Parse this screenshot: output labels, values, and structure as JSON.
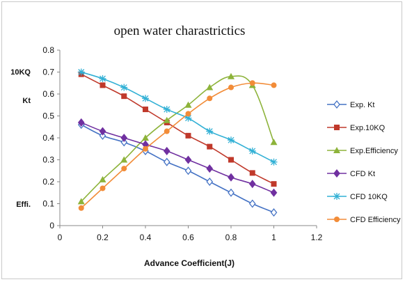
{
  "chart_data": {
    "type": "line",
    "title": "open water charastrictics",
    "xlabel": "Advance Coefficient(J)",
    "ylabel": "",
    "side_labels": [
      "10KQ",
      "Kt",
      "Effi."
    ],
    "xlim": [
      0,
      1.2
    ],
    "ylim": [
      0,
      0.8
    ],
    "x_ticks": [
      "0",
      "0.2",
      "0.4",
      "0.6",
      "0.8",
      "1",
      "1.2"
    ],
    "y_ticks": [
      "0",
      "0.1",
      "0.2",
      "0.3",
      "0.4",
      "0.5",
      "0.6",
      "0.7",
      "0.8"
    ],
    "grid": false,
    "legend_position": "right",
    "x": [
      0.1,
      0.2,
      0.3,
      0.4,
      0.5,
      0.6,
      0.7,
      0.8,
      0.9,
      1.0
    ],
    "series": [
      {
        "name": "Exp. Kt",
        "color": "#4472c4",
        "marker": "diamond-open",
        "values": [
          0.46,
          0.41,
          0.38,
          0.34,
          0.29,
          0.25,
          0.2,
          0.15,
          0.1,
          0.06
        ]
      },
      {
        "name": "Exp.10KQ",
        "color": "#c0392b",
        "marker": "square",
        "values": [
          0.69,
          0.64,
          0.59,
          0.53,
          0.47,
          0.41,
          0.36,
          0.3,
          0.24,
          0.19
        ]
      },
      {
        "name": "Exp.Efficiency",
        "color": "#8db33a",
        "marker": "triangle",
        "values": [
          0.11,
          0.21,
          0.3,
          0.4,
          0.48,
          0.55,
          0.63,
          0.68,
          0.64,
          0.38
        ]
      },
      {
        "name": "CFD Kt",
        "color": "#7030a0",
        "marker": "diamond",
        "values": [
          0.47,
          0.43,
          0.4,
          0.37,
          0.34,
          0.3,
          0.26,
          0.22,
          0.19,
          0.15
        ]
      },
      {
        "name": "CFD 10KQ",
        "color": "#31b0d5",
        "marker": "star",
        "values": [
          0.7,
          0.67,
          0.63,
          0.58,
          0.53,
          0.49,
          0.43,
          0.39,
          0.34,
          0.29
        ]
      },
      {
        "name": "CFD Efficiency",
        "color": "#f28c38",
        "marker": "circle",
        "values": [
          0.08,
          0.17,
          0.26,
          0.35,
          0.43,
          0.51,
          0.58,
          0.63,
          0.65,
          0.64
        ]
      }
    ]
  }
}
